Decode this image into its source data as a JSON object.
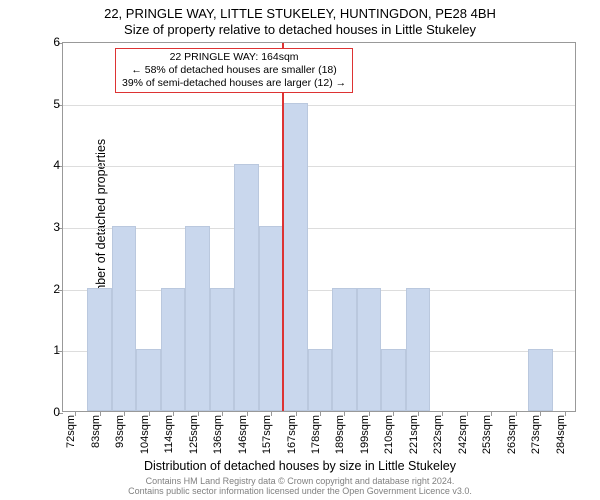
{
  "title_line1": "22, PRINGLE WAY, LITTLE STUKELEY, HUNTINGDON, PE28 4BH",
  "title_line2": "Size of property relative to detached houses in Little Stukeley",
  "y_axis_label": "Number of detached properties",
  "x_axis_label": "Distribution of detached houses by size in Little Stukeley",
  "ylim": [
    0,
    6
  ],
  "ytick_step": 1,
  "bar_color": "#c9d7ed",
  "bar_border": "#bac8de",
  "grid_color": "#dddddd",
  "axis_color": "#999999",
  "ref_line_color": "#d33",
  "ref_line_x_index": 9,
  "categories": [
    "72sqm",
    "83sqm",
    "93sqm",
    "104sqm",
    "114sqm",
    "125sqm",
    "136sqm",
    "146sqm",
    "157sqm",
    "167sqm",
    "178sqm",
    "189sqm",
    "199sqm",
    "210sqm",
    "221sqm",
    "232sqm",
    "242sqm",
    "253sqm",
    "263sqm",
    "273sqm",
    "284sqm"
  ],
  "values": [
    0,
    2,
    3,
    1,
    2,
    3,
    2,
    4,
    3,
    5,
    1,
    2,
    2,
    1,
    2,
    0,
    0,
    0,
    0,
    1,
    0
  ],
  "annotation": {
    "line1": "22 PRINGLE WAY: 164sqm",
    "line2": "← 58% of detached houses are smaller (18)",
    "line3": "39% of semi-detached houses are larger (12) →"
  },
  "footer_line1": "Contains HM Land Registry data © Crown copyright and database right 2024.",
  "footer_line2": "Contains public sector information licensed under the Open Government Licence v3.0."
}
